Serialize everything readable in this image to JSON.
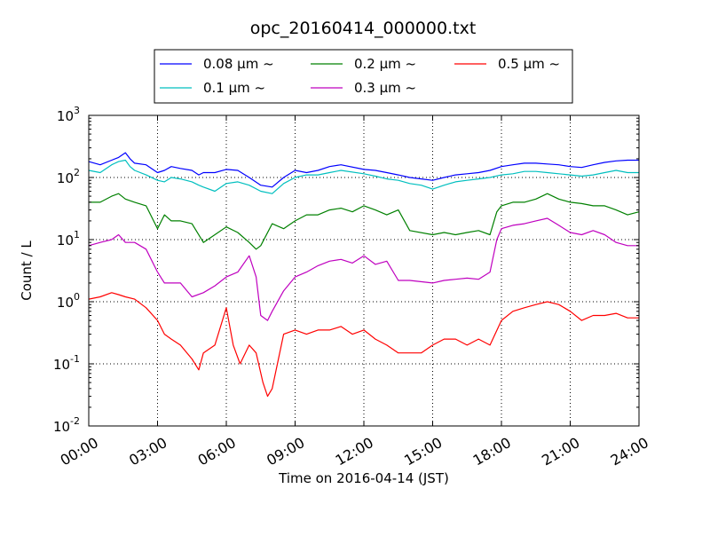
{
  "chart_data": {
    "type": "line",
    "title": "opc_20160414_000000.txt",
    "xlabel": "Time on 2016-04-14 (JST)",
    "ylabel": "Count / L",
    "y_scale": "log",
    "ylim": [
      0.01,
      1000
    ],
    "xlim": [
      0,
      24
    ],
    "x_unit": "hours since 00:00 JST",
    "x_tick_labels": [
      "00:00",
      "03:00",
      "06:00",
      "09:00",
      "12:00",
      "15:00",
      "18:00",
      "21:00",
      "24:00"
    ],
    "y_tick_labels": [
      {
        "base": "10",
        "exp": "-2"
      },
      {
        "base": "10",
        "exp": "-1"
      },
      {
        "base": "10",
        "exp": "0"
      },
      {
        "base": "10",
        "exp": "1"
      },
      {
        "base": "10",
        "exp": "2"
      },
      {
        "base": "10",
        "exp": "3"
      }
    ],
    "grid": true,
    "legend_placement": "top-center",
    "series": [
      {
        "name": "0.08 μm ~",
        "color": "#0000ff",
        "x": [
          0,
          0.5,
          1,
          1.3,
          1.6,
          1.8,
          2,
          2.5,
          3,
          3.3,
          3.6,
          4,
          4.5,
          4.8,
          5,
          5.5,
          6,
          6.5,
          7,
          7.5,
          8,
          8.5,
          9,
          9.5,
          10,
          10.5,
          11,
          12,
          12.5,
          13,
          13.5,
          14,
          14.5,
          15,
          15.5,
          16,
          16.5,
          17,
          17.5,
          18,
          18.5,
          19,
          19.5,
          20,
          20.5,
          21,
          21.5,
          22,
          22.5,
          23,
          23.5,
          24
        ],
        "y": [
          180,
          160,
          190,
          210,
          250,
          200,
          170,
          160,
          120,
          130,
          150,
          140,
          130,
          110,
          120,
          120,
          135,
          130,
          100,
          75,
          70,
          100,
          130,
          120,
          130,
          150,
          160,
          135,
          130,
          120,
          110,
          100,
          95,
          90,
          100,
          110,
          115,
          120,
          130,
          150,
          160,
          170,
          170,
          165,
          160,
          150,
          145,
          160,
          175,
          185,
          190,
          190
        ]
      },
      {
        "name": "0.1 μm ~",
        "color": "#00bfbf",
        "x": [
          0,
          0.5,
          1,
          1.3,
          1.6,
          1.8,
          2,
          2.5,
          3,
          3.3,
          3.6,
          4,
          4.5,
          4.8,
          5,
          5.5,
          6,
          6.5,
          7,
          7.5,
          8,
          8.5,
          9,
          9.5,
          10,
          10.5,
          11,
          12,
          12.5,
          13,
          13.5,
          14,
          14.5,
          15,
          15.5,
          16,
          16.5,
          17,
          17.5,
          18,
          18.5,
          19,
          19.5,
          20,
          20.5,
          21,
          21.5,
          22,
          22.5,
          23,
          23.5,
          24
        ],
        "y": [
          130,
          120,
          160,
          180,
          190,
          150,
          130,
          110,
          90,
          85,
          100,
          95,
          85,
          75,
          70,
          60,
          80,
          85,
          75,
          60,
          55,
          80,
          100,
          110,
          110,
          120,
          130,
          115,
          105,
          95,
          90,
          80,
          75,
          65,
          75,
          85,
          90,
          95,
          100,
          110,
          115,
          125,
          125,
          120,
          115,
          110,
          105,
          110,
          120,
          130,
          120,
          120
        ]
      },
      {
        "name": "0.2 μm ~",
        "color": "#008000",
        "x": [
          0,
          0.5,
          1,
          1.3,
          1.6,
          2,
          2.5,
          3,
          3.3,
          3.6,
          4,
          4.5,
          5,
          5.5,
          6,
          6.5,
          7,
          7.3,
          7.5,
          8,
          8.5,
          9,
          9.5,
          10,
          10.5,
          11,
          11.5,
          12,
          12.5,
          13,
          13.5,
          14,
          15,
          15.5,
          16,
          16.5,
          17,
          17.5,
          17.8,
          18,
          18.5,
          19,
          19.5,
          20,
          20.5,
          21,
          21.5,
          22,
          22.5,
          23,
          23.5,
          24
        ],
        "y": [
          40,
          40,
          50,
          55,
          45,
          40,
          35,
          15,
          25,
          20,
          20,
          18,
          9,
          12,
          16,
          13,
          9,
          7,
          8,
          18,
          15,
          20,
          25,
          25,
          30,
          32,
          28,
          35,
          30,
          25,
          30,
          14,
          12,
          13,
          12,
          13,
          14,
          12,
          28,
          35,
          40,
          40,
          45,
          55,
          45,
          40,
          38,
          35,
          35,
          30,
          25,
          28
        ]
      },
      {
        "name": "0.3 μm ~",
        "color": "#bf00bf",
        "x": [
          0,
          0.5,
          1,
          1.3,
          1.6,
          2,
          2.5,
          3,
          3.3,
          3.6,
          4,
          4.5,
          5,
          5.5,
          6,
          6.5,
          7,
          7.3,
          7.5,
          7.8,
          8,
          8.5,
          9,
          9.5,
          10,
          10.5,
          11,
          11.5,
          12,
          12.5,
          13,
          13.5,
          14,
          15,
          15.5,
          16,
          16.5,
          17,
          17.5,
          17.8,
          18,
          18.5,
          19,
          19.5,
          20,
          20.5,
          21,
          21.5,
          22,
          22.5,
          23,
          23.5,
          24
        ],
        "y": [
          8,
          9,
          10,
          12,
          9,
          9,
          7,
          3,
          2,
          2,
          2,
          1.2,
          1.4,
          1.8,
          2.5,
          3,
          5.5,
          2.5,
          0.6,
          0.5,
          0.7,
          1.5,
          2.5,
          3,
          3.8,
          4.5,
          4.8,
          4.2,
          5.5,
          4,
          4.5,
          2.2,
          2.2,
          2,
          2.2,
          2.3,
          2.4,
          2.3,
          3,
          10,
          15,
          17,
          18,
          20,
          22,
          17,
          13,
          12,
          14,
          12,
          9,
          8,
          8
        ]
      },
      {
        "name": "0.5 μm ~",
        "color": "#ff0000",
        "x": [
          0,
          0.5,
          1,
          1.3,
          1.6,
          2,
          2.5,
          3,
          3.3,
          3.6,
          4,
          4.5,
          4.8,
          5,
          5.5,
          6,
          6.3,
          6.6,
          7,
          7.3,
          7.6,
          7.8,
          8,
          8.5,
          9,
          9.5,
          10,
          10.5,
          11,
          11.5,
          12,
          12.5,
          13,
          13.5,
          14,
          14.5,
          15,
          15.5,
          16,
          16.5,
          17,
          17.5,
          18,
          18.5,
          19,
          19.5,
          20,
          20.5,
          21,
          21.5,
          22,
          22.5,
          23,
          23.5,
          24
        ],
        "y": [
          1.1,
          1.2,
          1.4,
          1.3,
          1.2,
          1.1,
          0.8,
          0.5,
          0.3,
          0.25,
          0.2,
          0.12,
          0.08,
          0.15,
          0.2,
          0.8,
          0.2,
          0.1,
          0.2,
          0.15,
          0.05,
          0.03,
          0.04,
          0.3,
          0.35,
          0.3,
          0.35,
          0.35,
          0.4,
          0.3,
          0.35,
          0.25,
          0.2,
          0.15,
          0.15,
          0.15,
          0.2,
          0.25,
          0.25,
          0.2,
          0.25,
          0.2,
          0.5,
          0.7,
          0.8,
          0.9,
          1.0,
          0.9,
          0.7,
          0.5,
          0.6,
          0.6,
          0.65,
          0.55,
          0.55
        ]
      }
    ]
  }
}
